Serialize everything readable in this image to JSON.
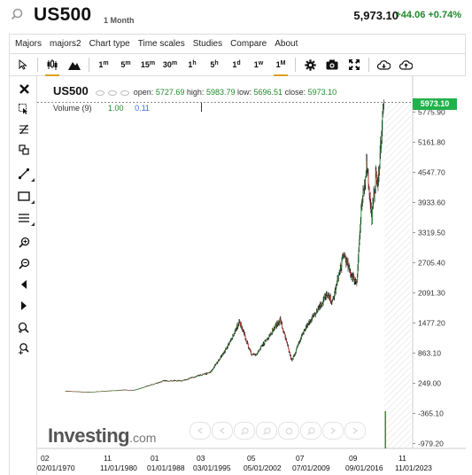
{
  "header": {
    "symbol": "US500",
    "timeframe": "1 Month",
    "price": "5,973.10",
    "change": "+44.06 +0.74%"
  },
  "menu": [
    "Majors",
    "majors2",
    "Chart type",
    "Time scales",
    "Studies",
    "Compare",
    "About"
  ],
  "toolbar": {
    "intervals": [
      "1m",
      "5m",
      "15m",
      "30m",
      "1h",
      "5h",
      "1d",
      "1w",
      "1M"
    ],
    "selected_interval": "1M"
  },
  "legend": {
    "symbol": "US500",
    "open_label": "open:",
    "open": "5727.69",
    "high_label": "high:",
    "high": "5983.79",
    "low_label": "low:",
    "low": "5696.51",
    "close_label": "close:",
    "close": "5973.10",
    "volume_label": "Volume (9)",
    "volume_a": "1.00",
    "volume_b": "0.11"
  },
  "price_label": "5973.10",
  "logo": {
    "name": "Investing",
    "suffix": ".com"
  },
  "colors": {
    "up": "#1e8a2a",
    "down": "#c62828",
    "price_tag": "#21b24b",
    "tf_underline": "#e0a020"
  },
  "chart_data": {
    "type": "candlestick",
    "x": [
      "1970",
      "1974",
      "1980",
      "1982",
      "1987",
      "1990",
      "1995",
      "1998",
      "2000",
      "2002",
      "2003",
      "2007",
      "2009",
      "2011",
      "2015",
      "2016",
      "2018",
      "2019",
      "2020-03",
      "2020-12",
      "2021-12",
      "2022-10",
      "2023-07",
      "2023-10",
      "2024-11"
    ],
    "series": [
      {
        "values": [
          92,
          69,
          114,
          110,
          300,
          300,
          470,
          1000,
          1500,
          850,
          850,
          1550,
          700,
          1300,
          2050,
          1900,
          2900,
          2500,
          2300,
          3700,
          4750,
          3600,
          4550,
          4200,
          5973
        ]
      }
    ],
    "y_ticks": [
      "5775.90",
      "5161.80",
      "4547.70",
      "3933.60",
      "3319.50",
      "2705.40",
      "2091.30",
      "1477.20",
      "863.10",
      "249.00",
      "-365.10",
      "-979.20"
    ],
    "ylim": [
      -979.2,
      6100
    ],
    "x_ticks_top": [
      "02",
      "11",
      "01",
      "03",
      "05",
      "07",
      "09",
      "11"
    ],
    "x_ticks_bottom": [
      "02/01/1970",
      "11/01/1980",
      "01/01/1988",
      "03/01/1995",
      "05/01/2002",
      "07/01/2009",
      "09/01/2016",
      "11/01/2023"
    ],
    "last_price": 5973.1
  }
}
